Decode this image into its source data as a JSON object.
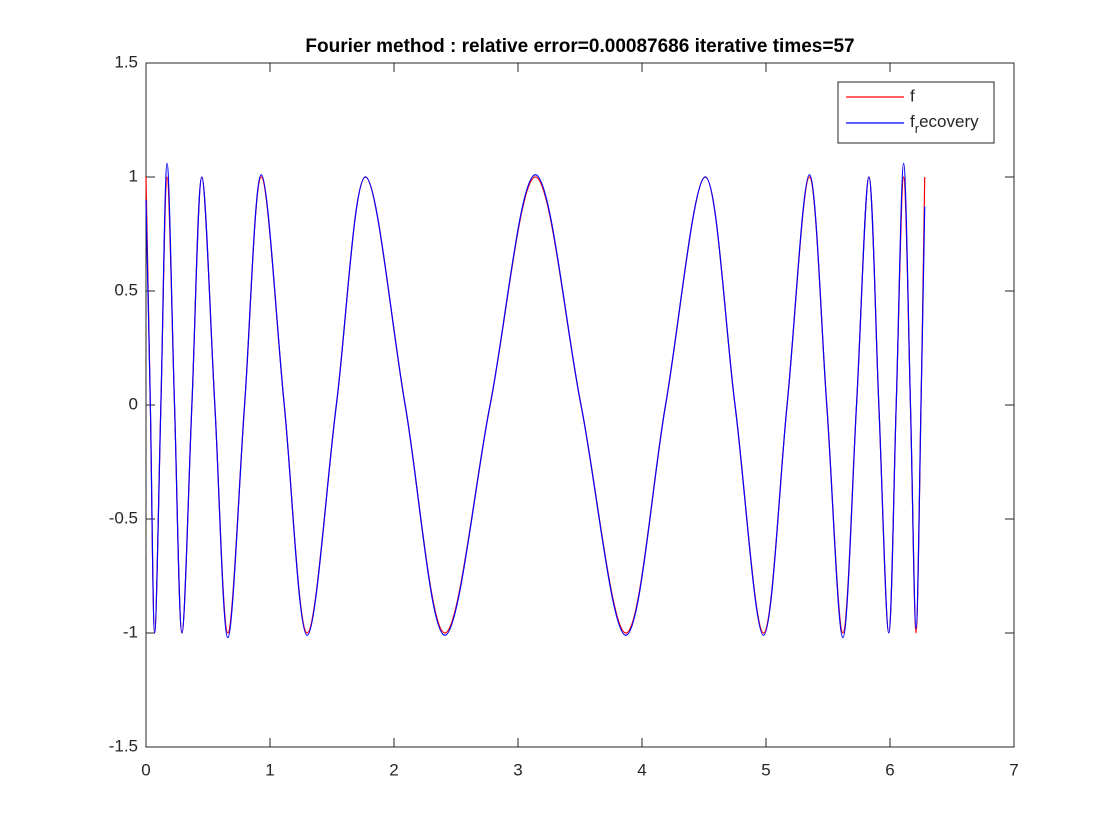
{
  "chart_data": {
    "type": "line",
    "title": "Fourier method : relative error=0.00087686  iterative times=57",
    "x": [
      0,
      0.035,
      0.07,
      0.12,
      0.17,
      0.23,
      0.29,
      0.37,
      0.45,
      0.555,
      0.66,
      0.795,
      0.93,
      1.115,
      1.3,
      1.535,
      1.77,
      2.09,
      2.41,
      2.775,
      3.14,
      3.508,
      3.87,
      4.19,
      4.51,
      4.75,
      4.98,
      5.17,
      5.35,
      5.49,
      5.62,
      5.73,
      5.83,
      5.91,
      5.99,
      6.05,
      6.11,
      6.165,
      6.21,
      6.25,
      6.28
    ],
    "series": [
      {
        "name": "f",
        "color": "#ff0000",
        "values": [
          1,
          0,
          -1,
          0,
          1,
          0,
          -1,
          0,
          1,
          0,
          -1,
          0,
          1,
          0,
          -1,
          0,
          1,
          0,
          -1,
          0,
          1,
          0,
          -1,
          0,
          1,
          0,
          -1,
          0,
          1,
          0,
          -1,
          0,
          1,
          0,
          -1,
          0,
          1,
          0,
          -1,
          0,
          1
        ]
      },
      {
        "name": "f_recovery",
        "color": "#0000ff",
        "values": [
          0.9,
          0,
          -1,
          0,
          1.06,
          0,
          -1,
          0,
          1,
          0,
          -1.02,
          0,
          1.01,
          0,
          -1.01,
          0,
          1,
          0,
          -1.01,
          0,
          1.01,
          0,
          -1.01,
          0,
          1,
          0,
          -1.01,
          0,
          1.01,
          0,
          -1.02,
          0,
          1,
          0,
          -1,
          0,
          1.06,
          0,
          -0.98,
          0,
          0.87
        ]
      }
    ],
    "xlim": [
      0,
      7
    ],
    "xticks": [
      0,
      1,
      2,
      3,
      4,
      5,
      6,
      7
    ],
    "ylim": [
      -1.5,
      1.5
    ],
    "yticks": [
      -1.5,
      -1,
      -0.5,
      0,
      0.5,
      1,
      1.5
    ],
    "legend": "upper right"
  }
}
